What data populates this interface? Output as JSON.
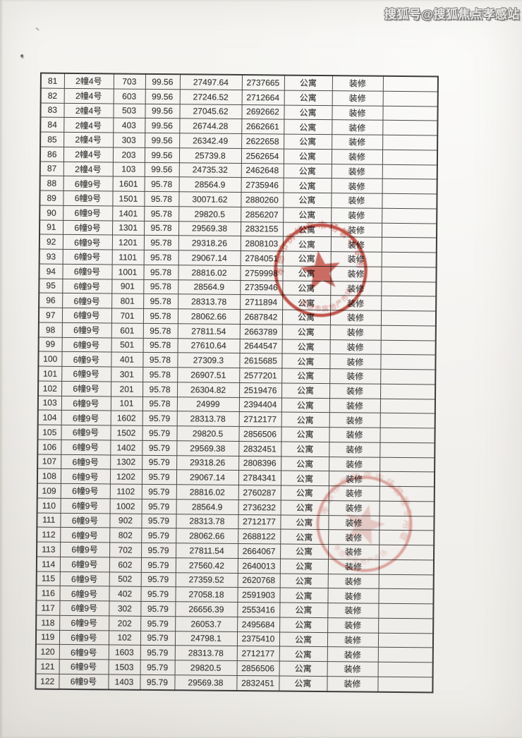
{
  "watermark": {
    "text": "搜狐号@搜狐焦点孝感站"
  },
  "table": {
    "note": "continuation page of a price-list table, no header row visible",
    "rows": [
      [
        "81",
        "2幢4号",
        "703",
        "99.56",
        "27497.64",
        "2737665",
        "公寓",
        "装修",
        ""
      ],
      [
        "82",
        "2幢4号",
        "603",
        "99.56",
        "27246.52",
        "2712664",
        "公寓",
        "装修",
        ""
      ],
      [
        "83",
        "2幢4号",
        "503",
        "99.56",
        "27045.62",
        "2692662",
        "公寓",
        "装修",
        ""
      ],
      [
        "84",
        "2幢4号",
        "403",
        "99.56",
        "26744.28",
        "2662661",
        "公寓",
        "装修",
        ""
      ],
      [
        "85",
        "2幢4号",
        "303",
        "99.56",
        "26342.49",
        "2622658",
        "公寓",
        "装修",
        ""
      ],
      [
        "86",
        "2幢4号",
        "203",
        "99.56",
        "25739.8",
        "2562654",
        "公寓",
        "装修",
        ""
      ],
      [
        "87",
        "2幢4号",
        "103",
        "99.56",
        "24735.32",
        "2462648",
        "公寓",
        "装修",
        ""
      ],
      [
        "88",
        "6幢9号",
        "1601",
        "95.78",
        "28564.9",
        "2735946",
        "公寓",
        "装修",
        ""
      ],
      [
        "89",
        "6幢9号",
        "1501",
        "95.78",
        "30071.62",
        "2880260",
        "公寓",
        "装修",
        ""
      ],
      [
        "90",
        "6幢9号",
        "1401",
        "95.78",
        "29820.5",
        "2856207",
        "公寓",
        "装修",
        ""
      ],
      [
        "91",
        "6幢9号",
        "1301",
        "95.78",
        "29569.38",
        "2832155",
        "公寓",
        "装修",
        ""
      ],
      [
        "92",
        "6幢9号",
        "1201",
        "95.78",
        "29318.26",
        "2808103",
        "公寓",
        "装修",
        ""
      ],
      [
        "93",
        "6幢9号",
        "1101",
        "95.78",
        "29067.14",
        "2784051",
        "公寓",
        "装修",
        ""
      ],
      [
        "94",
        "6幢9号",
        "1001",
        "95.78",
        "28816.02",
        "2759998",
        "公寓",
        "装修",
        ""
      ],
      [
        "95",
        "6幢9号",
        "901",
        "95.78",
        "28564.9",
        "2735946",
        "公寓",
        "装修",
        ""
      ],
      [
        "96",
        "6幢9号",
        "801",
        "95.78",
        "28313.78",
        "2711894",
        "公寓",
        "装修",
        ""
      ],
      [
        "97",
        "6幢9号",
        "701",
        "95.78",
        "28062.66",
        "2687842",
        "公寓",
        "装修",
        ""
      ],
      [
        "98",
        "6幢9号",
        "601",
        "95.78",
        "27811.54",
        "2663789",
        "公寓",
        "装修",
        ""
      ],
      [
        "99",
        "6幢9号",
        "501",
        "95.78",
        "27610.64",
        "2644547",
        "公寓",
        "装修",
        ""
      ],
      [
        "100",
        "6幢9号",
        "401",
        "95.78",
        "27309.3",
        "2615685",
        "公寓",
        "装修",
        ""
      ],
      [
        "101",
        "6幢9号",
        "301",
        "95.78",
        "26907.51",
        "2577201",
        "公寓",
        "装修",
        ""
      ],
      [
        "102",
        "6幢9号",
        "201",
        "95.78",
        "26304.82",
        "2519476",
        "公寓",
        "装修",
        ""
      ],
      [
        "103",
        "6幢9号",
        "101",
        "95.78",
        "24999",
        "2394404",
        "公寓",
        "装修",
        ""
      ],
      [
        "104",
        "6幢9号",
        "1602",
        "95.79",
        "28313.78",
        "2712177",
        "公寓",
        "装修",
        ""
      ],
      [
        "105",
        "6幢9号",
        "1502",
        "95.79",
        "29820.5",
        "2856506",
        "公寓",
        "装修",
        ""
      ],
      [
        "106",
        "6幢9号",
        "1402",
        "95.79",
        "29569.38",
        "2832451",
        "公寓",
        "装修",
        ""
      ],
      [
        "107",
        "6幢9号",
        "1302",
        "95.79",
        "29318.26",
        "2808396",
        "公寓",
        "装修",
        ""
      ],
      [
        "108",
        "6幢9号",
        "1202",
        "95.79",
        "29067.14",
        "2784341",
        "公寓",
        "装修",
        ""
      ],
      [
        "109",
        "6幢9号",
        "1102",
        "95.79",
        "28816.02",
        "2760287",
        "公寓",
        "装修",
        ""
      ],
      [
        "110",
        "6幢9号",
        "1002",
        "95.79",
        "28564.9",
        "2736232",
        "公寓",
        "装修",
        ""
      ],
      [
        "111",
        "6幢9号",
        "902",
        "95.79",
        "28313.78",
        "2712177",
        "公寓",
        "装修",
        ""
      ],
      [
        "112",
        "6幢9号",
        "802",
        "95.79",
        "28062.66",
        "2688122",
        "公寓",
        "装修",
        ""
      ],
      [
        "113",
        "6幢9号",
        "702",
        "95.79",
        "27811.54",
        "2664067",
        "公寓",
        "装修",
        ""
      ],
      [
        "114",
        "6幢9号",
        "602",
        "95.79",
        "27560.42",
        "2640013",
        "公寓",
        "装修",
        ""
      ],
      [
        "115",
        "6幢9号",
        "502",
        "95.79",
        "27359.52",
        "2620768",
        "公寓",
        "装修",
        ""
      ],
      [
        "116",
        "6幢9号",
        "402",
        "95.79",
        "27058.18",
        "2591903",
        "公寓",
        "装修",
        ""
      ],
      [
        "117",
        "6幢9号",
        "302",
        "95.79",
        "26656.39",
        "2553416",
        "公寓",
        "装修",
        ""
      ],
      [
        "118",
        "6幢9号",
        "202",
        "95.79",
        "26053.7",
        "2495684",
        "公寓",
        "装修",
        ""
      ],
      [
        "119",
        "6幢9号",
        "102",
        "95.79",
        "24798.1",
        "2375410",
        "公寓",
        "装修",
        ""
      ],
      [
        "120",
        "6幢9号",
        "1603",
        "95.79",
        "28313.78",
        "2712177",
        "公寓",
        "装修",
        ""
      ],
      [
        "121",
        "6幢9号",
        "1503",
        "95.79",
        "29820.5",
        "2856506",
        "公寓",
        "装修",
        ""
      ],
      [
        "122",
        "6幢9号",
        "1403",
        "95.79",
        "29569.38",
        "2832451",
        "公寓",
        "装修",
        ""
      ]
    ]
  },
  "stamps": [
    {
      "color": "#b8372c",
      "has_star": true,
      "illegible_text_approx": "孝感市房地产市场管理专用章"
    },
    {
      "color": "#c45c52",
      "has_star": true,
      "illegible_text_approx": "孝感市房地产市场管理专用章"
    }
  ],
  "page_background": "#f3f1ee"
}
